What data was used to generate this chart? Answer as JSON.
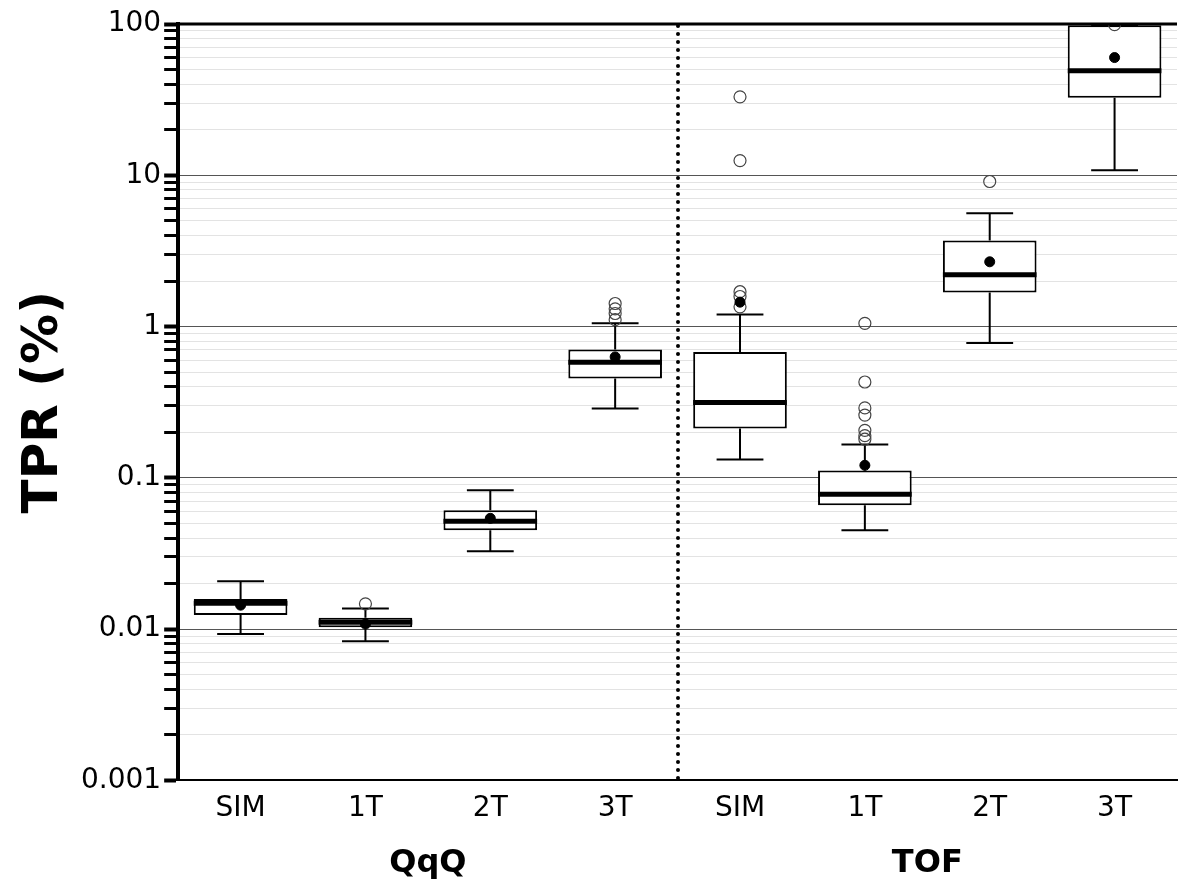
{
  "chart_data": {
    "type": "box",
    "ylabel": "TPR (%)",
    "categories": [
      "SIM",
      "1T",
      "2T",
      "3T",
      "SIM",
      "1T",
      "2T",
      "3T"
    ],
    "boxes": [
      {
        "low": 0.0093,
        "q1": 0.0124,
        "median": 0.0148,
        "q3": 0.0158,
        "high": 0.0207,
        "mean": 0.0144
      },
      {
        "low": 0.0083,
        "q1": 0.0103,
        "median": 0.0111,
        "q3": 0.0119,
        "high": 0.0137,
        "mean": 0.0108,
        "outliers": [
          0.0147
        ]
      },
      {
        "low": 0.0327,
        "q1": 0.045,
        "median": 0.0517,
        "q3": 0.061,
        "high": 0.0827,
        "mean": 0.054
      },
      {
        "low": 0.287,
        "q1": 0.454,
        "median": 0.58,
        "q3": 0.705,
        "high": 1.05,
        "mean": 0.63,
        "outliers": [
          1.11,
          1.22,
          1.31,
          1.42
        ]
      },
      {
        "low": 0.132,
        "q1": 0.212,
        "median": 0.315,
        "q3": 0.68,
        "high": 1.2,
        "mean": 1.45,
        "outliers": [
          1.35,
          1.58,
          1.7,
          12.5,
          33
        ]
      },
      {
        "low": 0.045,
        "q1": 0.066,
        "median": 0.078,
        "q3": 0.112,
        "high": 0.166,
        "mean": 0.121,
        "outliers": [
          0.18,
          0.19,
          0.206,
          0.26,
          0.29,
          0.43,
          1.05
        ]
      },
      {
        "low": 0.78,
        "q1": 1.68,
        "median": 2.2,
        "q3": 3.7,
        "high": 5.6,
        "mean": 2.68,
        "outliers": [
          9.1
        ]
      },
      {
        "low": 10.8,
        "q1": 32.6,
        "median": 49,
        "q3": 98,
        "high": 98,
        "mean": 60,
        "outliers": [
          99
        ]
      }
    ],
    "annotations": [
      "QqQ",
      "TOF"
    ],
    "log": "y",
    "ylim": [
      0.001,
      100
    ],
    "yticks": [
      0.001,
      {
        "value": 0.002,
        "label": null
      },
      {
        "value": 0.003,
        "label": null
      },
      {
        "value": 0.004,
        "label": null
      },
      {
        "value": 0.005,
        "label": null
      },
      {
        "value": 0.006,
        "label": null
      },
      {
        "value": 0.007,
        "label": null
      },
      {
        "value": 0.008,
        "label": null
      },
      {
        "value": 0.009,
        "label": null
      },
      0.01,
      {
        "value": 0.02,
        "label": null
      },
      {
        "value": 0.03,
        "label": null
      },
      {
        "value": 0.04,
        "label": null
      },
      {
        "value": 0.05,
        "label": null
      },
      {
        "value": 0.06,
        "label": null
      },
      {
        "value": 0.07,
        "label": null
      },
      {
        "value": 0.08,
        "label": null
      },
      {
        "value": 0.09,
        "label": null
      },
      0.1,
      {
        "value": 0.2,
        "label": null
      },
      {
        "value": 0.3,
        "label": null
      },
      {
        "value": 0.4,
        "label": null
      },
      {
        "value": 0.5,
        "label": null
      },
      {
        "value": 0.6,
        "label": null
      },
      {
        "value": 0.7,
        "label": null
      },
      {
        "value": 0.8,
        "label": null
      },
      {
        "value": 0.9,
        "label": null
      },
      1,
      {
        "value": 2,
        "label": null
      },
      {
        "value": 3,
        "label": null
      },
      {
        "value": 4,
        "label": null
      },
      {
        "value": 5,
        "label": null
      },
      {
        "value": 6,
        "label": null
      },
      {
        "value": 7,
        "label": null
      },
      {
        "value": 8,
        "label": null
      },
      {
        "value": 9,
        "label": null
      },
      10,
      {
        "value": 20,
        "label": null
      },
      {
        "value": 30,
        "label": null
      },
      {
        "value": 40,
        "label": null
      },
      {
        "value": 50,
        "label": null
      },
      {
        "value": 60,
        "label": null
      },
      {
        "value": 70,
        "label": null
      },
      {
        "value": 80,
        "label": null
      },
      {
        "value": 90,
        "label": null
      },
      100
    ],
    "grid": true
  }
}
